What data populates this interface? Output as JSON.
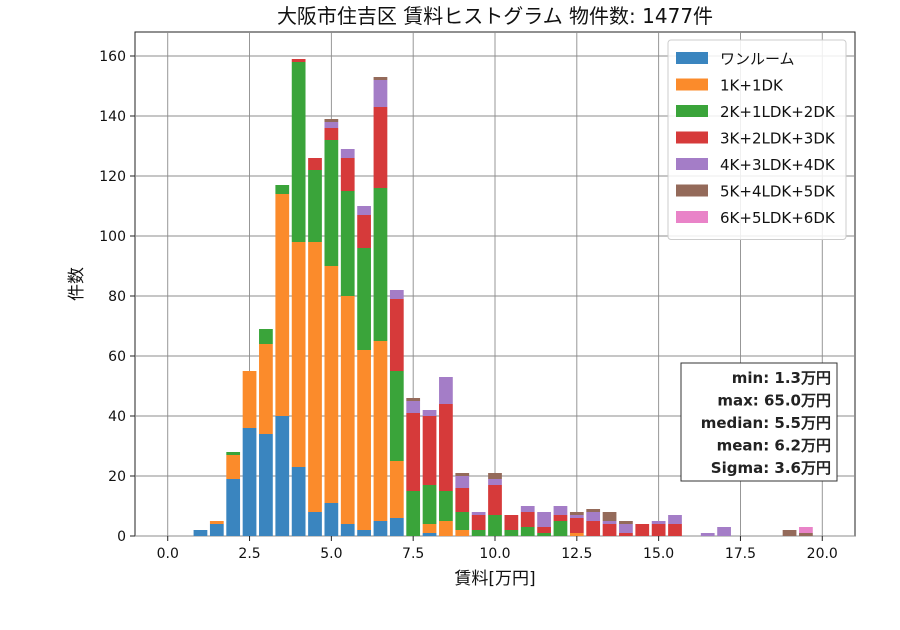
{
  "chart_data": {
    "type": "bar",
    "title": "大阪市住吉区 賃料ヒストグラム 物件数: 1477件",
    "xlabel": "賃料[万円]",
    "ylabel": "件数",
    "xlim": [
      -1.0,
      21.0
    ],
    "ylim": [
      0,
      168
    ],
    "xticks": [
      "0.0",
      "2.5",
      "5.0",
      "7.5",
      "10.0",
      "12.5",
      "15.0",
      "17.5",
      "20.0"
    ],
    "yticks": [
      "0",
      "20",
      "40",
      "60",
      "80",
      "100",
      "120",
      "140",
      "160"
    ],
    "grid": true,
    "legend_position": "top-right",
    "bin_width": 0.5,
    "x": [
      1.0,
      1.5,
      2.0,
      2.5,
      3.0,
      3.5,
      4.0,
      4.5,
      5.0,
      5.5,
      6.0,
      6.5,
      7.0,
      7.5,
      8.0,
      8.5,
      9.0,
      9.5,
      10.0,
      10.5,
      11.0,
      11.5,
      12.0,
      12.5,
      13.0,
      13.5,
      14.0,
      14.5,
      15.0,
      15.5,
      16.5,
      17.0,
      19.0,
      19.5
    ],
    "series": [
      {
        "name": "ワンルーム",
        "color": "#3a85bf",
        "values": [
          2,
          4,
          19,
          36,
          34,
          40,
          23,
          8,
          11,
          4,
          2,
          5,
          6,
          0,
          1,
          0,
          0,
          0,
          0,
          0,
          0,
          0,
          0,
          0,
          0,
          0,
          0,
          0,
          0,
          0,
          0,
          0,
          0,
          0
        ]
      },
      {
        "name": "1K+1DK",
        "color": "#fb8b2b",
        "values": [
          0,
          1,
          8,
          19,
          30,
          74,
          75,
          90,
          79,
          76,
          60,
          60,
          19,
          0,
          3,
          5,
          2,
          0,
          0,
          0,
          0,
          0,
          0,
          1,
          0,
          0,
          0,
          0,
          0,
          0,
          0,
          0,
          0,
          0
        ]
      },
      {
        "name": "2K+1LDK+2DK",
        "color": "#3aa43a",
        "values": [
          0,
          0,
          1,
          0,
          5,
          3,
          60,
          24,
          42,
          35,
          34,
          51,
          30,
          15,
          13,
          10,
          6,
          2,
          7,
          2,
          3,
          1,
          5,
          0,
          0,
          0,
          0,
          0,
          0,
          0,
          0,
          0,
          0,
          0
        ]
      },
      {
        "name": "3K+2LDK+3DK",
        "color": "#d63a3a",
        "values": [
          0,
          0,
          0,
          0,
          0,
          0,
          1,
          4,
          4,
          11,
          11,
          27,
          24,
          26,
          23,
          29,
          8,
          5,
          10,
          5,
          5,
          2,
          2,
          5,
          5,
          4,
          1,
          4,
          4,
          4,
          0,
          0,
          0,
          0
        ]
      },
      {
        "name": "4K+3LDK+4DK",
        "color": "#a47dc7",
        "values": [
          0,
          0,
          0,
          0,
          0,
          0,
          0,
          0,
          2,
          3,
          3,
          9,
          3,
          4,
          2,
          9,
          4,
          1,
          2,
          0,
          2,
          5,
          3,
          1,
          3,
          1,
          3,
          0,
          1,
          3,
          1,
          3,
          0,
          0
        ]
      },
      {
        "name": "5K+4LDK+5DK",
        "color": "#946a5a",
        "values": [
          0,
          0,
          0,
          0,
          0,
          0,
          0,
          0,
          1,
          0,
          0,
          1,
          0,
          1,
          0,
          0,
          1,
          0,
          2,
          0,
          0,
          0,
          0,
          1,
          1,
          3,
          1,
          0,
          0,
          0,
          0,
          0,
          2,
          1
        ]
      },
      {
        "name": "6K+5LDK+6DK",
        "color": "#e983c8",
        "values": [
          0,
          0,
          0,
          0,
          0,
          0,
          0,
          0,
          0,
          0,
          0,
          0,
          0,
          0,
          0,
          0,
          0,
          0,
          0,
          0,
          0,
          0,
          0,
          0,
          0,
          0,
          0,
          0,
          0,
          0,
          0,
          0,
          0,
          2
        ]
      }
    ],
    "stats": [
      "min: 1.3万円",
      "max: 65.0万円",
      "median: 5.5万円",
      "mean: 6.2万円",
      "Sigma: 3.6万円"
    ]
  }
}
